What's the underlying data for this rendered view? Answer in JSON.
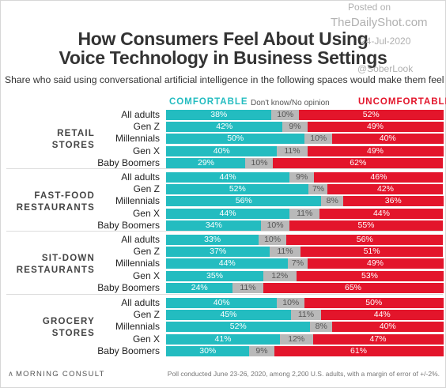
{
  "title_line1": "How Consumers Feel About Using",
  "title_line2": "Voice Technology in Business Settings",
  "subtitle": "Share who said using conversational artificial intelligence in the following spaces would make them feel…",
  "watermark": {
    "posted_on": "Posted on",
    "site": "TheDailyShot.com",
    "date": "24-Jul-2020",
    "handle": "@SoberLook"
  },
  "legend": {
    "comfortable": "COMFORTABLE",
    "no_opinion": "Don't know/No opinion",
    "uncomfortable": "UNCOMFORTABLE"
  },
  "colors": {
    "comfortable": "#23bcc0",
    "no_opinion": "#b9b9b9",
    "uncomfortable": "#e3152b"
  },
  "footer": {
    "brand": "MORNING CONSULT",
    "note": "Poll conducted June 23-26, 2020, among 2,200 U.S. adults, with a margin of error of +/-2%."
  },
  "chart_data": {
    "type": "bar",
    "orientation": "horizontal",
    "stacked": true,
    "unit": "%",
    "series_names": [
      "COMFORTABLE",
      "Don't know/No opinion",
      "UNCOMFORTABLE"
    ],
    "groups": [
      {
        "name": "RETAIL STORES",
        "name_lines": [
          "RETAIL",
          "STORES"
        ],
        "rows": [
          {
            "label": "All adults",
            "values": [
              38,
              10,
              52
            ]
          },
          {
            "label": "Gen Z",
            "values": [
              42,
              9,
              49
            ]
          },
          {
            "label": "Millennials",
            "values": [
              50,
              10,
              40
            ]
          },
          {
            "label": "Gen X",
            "values": [
              40,
              11,
              49
            ]
          },
          {
            "label": "Baby Boomers",
            "values": [
              29,
              10,
              62
            ]
          }
        ]
      },
      {
        "name": "FAST-FOOD RESTAURANTS",
        "name_lines": [
          "FAST-FOOD",
          "RESTAURANTS"
        ],
        "rows": [
          {
            "label": "All adults",
            "values": [
              44,
              9,
              46
            ]
          },
          {
            "label": "Gen Z",
            "values": [
              52,
              7,
              42
            ]
          },
          {
            "label": "Millennials",
            "values": [
              56,
              8,
              36
            ]
          },
          {
            "label": "Gen X",
            "values": [
              44,
              11,
              44
            ]
          },
          {
            "label": "Baby Boomers",
            "values": [
              34,
              10,
              55
            ]
          }
        ]
      },
      {
        "name": "SIT-DOWN RESTAURANTS",
        "name_lines": [
          "SIT-DOWN",
          "RESTAURANTS"
        ],
        "rows": [
          {
            "label": "All adults",
            "values": [
              33,
              10,
              56
            ]
          },
          {
            "label": "Gen Z",
            "values": [
              37,
              11,
              51
            ]
          },
          {
            "label": "Millennials",
            "values": [
              44,
              7,
              49
            ]
          },
          {
            "label": "Gen X",
            "values": [
              35,
              12,
              53
            ]
          },
          {
            "label": "Baby Boomers",
            "values": [
              24,
              11,
              65
            ]
          }
        ]
      },
      {
        "name": "GROCERY STORES",
        "name_lines": [
          "GROCERY",
          "STORES"
        ],
        "rows": [
          {
            "label": "All adults",
            "values": [
              40,
              10,
              50
            ]
          },
          {
            "label": "Gen Z",
            "values": [
              45,
              11,
              44
            ]
          },
          {
            "label": "Millennials",
            "values": [
              52,
              8,
              40
            ]
          },
          {
            "label": "Gen X",
            "values": [
              41,
              12,
              47
            ]
          },
          {
            "label": "Baby Boomers",
            "values": [
              30,
              9,
              61
            ]
          }
        ]
      }
    ]
  }
}
